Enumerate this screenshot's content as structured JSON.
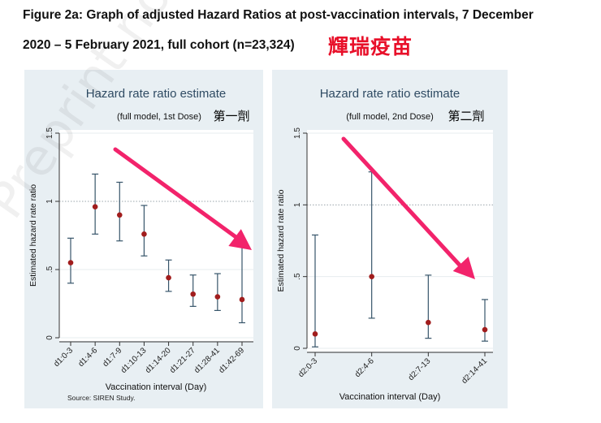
{
  "figure": {
    "title_line1": "Figure 2a: Graph of adjusted Hazard Ratios at post-vaccination intervals, 7 December",
    "title_line2": "2020 – 5 February 2021, full cohort (n=23,324)",
    "annotation_cn": "輝瑞疫苗",
    "source": "Source: SIREN Study.",
    "watermark": "Preprint not peer",
    "colors": {
      "marker": "#a11d1d",
      "whisker": "#37556a",
      "arrow": "#f2236b",
      "annotation": "#e8102a",
      "panel": "#e8eff3"
    }
  },
  "chart_data": [
    {
      "type": "scatter",
      "title": "Hazard rate ratio estimate",
      "subtitle": "(full model,  1st Dose)",
      "subtitle_cn": "第一劑",
      "xlabel": "Vaccination interval (Day)",
      "ylabel": "Estimated hazard rate ratio",
      "ylim": [
        0,
        1.5
      ],
      "yticks": [
        0,
        0.5,
        1,
        1.5
      ],
      "ytick_labels": [
        "0",
        ".5",
        "1",
        "1.5"
      ],
      "reference_line": 1,
      "categories": [
        "d1:0-3",
        "d1:4-6",
        "d1:7-9",
        "d1:10-13",
        "d1:14-20",
        "d1:21-27",
        "d1:28-41",
        "d1:42-69"
      ],
      "estimates": [
        0.55,
        0.96,
        0.9,
        0.76,
        0.44,
        0.32,
        0.3,
        0.28
      ],
      "lower": [
        0.4,
        0.76,
        0.71,
        0.6,
        0.34,
        0.23,
        0.2,
        0.11
      ],
      "upper": [
        0.73,
        1.2,
        1.14,
        0.97,
        0.57,
        0.46,
        0.47,
        0.72
      ]
    },
    {
      "type": "scatter",
      "title": "Hazard rate ratio estimate",
      "subtitle": "(full model,  2nd Dose)",
      "subtitle_cn": "第二劑",
      "xlabel": "Vaccination interval (Day)",
      "ylabel": "Estimated hazard rate ratio",
      "ylim": [
        0,
        1.5
      ],
      "yticks": [
        0,
        0.5,
        1,
        1.5
      ],
      "ytick_labels": [
        "0",
        ".5",
        "1",
        "1.5"
      ],
      "reference_line": 1,
      "categories": [
        "d2:0-3",
        "d2:4-6",
        "d2:7-13",
        "d2:14-41"
      ],
      "estimates": [
        0.1,
        0.5,
        0.18,
        0.13
      ],
      "lower": [
        0.01,
        0.21,
        0.07,
        0.05
      ],
      "upper": [
        0.79,
        1.23,
        0.51,
        0.34
      ]
    }
  ]
}
